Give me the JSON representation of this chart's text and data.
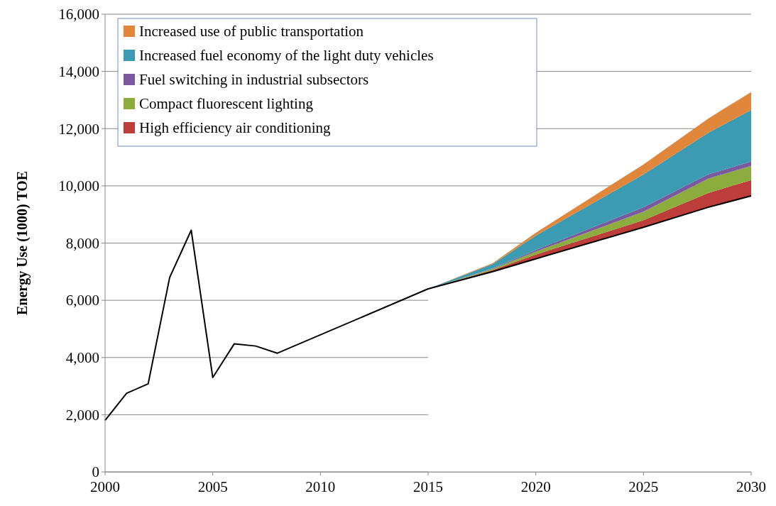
{
  "chart_data": {
    "type": "area",
    "ylabel": "Energy Use (1000) TOE",
    "stacked": true,
    "grid": "y",
    "legend": "top left",
    "xlim": [
      2000,
      2030
    ],
    "x": [
      2000,
      2001,
      2002,
      2003,
      2004,
      2005,
      2006,
      2007,
      2008,
      2015,
      2018,
      2020,
      2025,
      2028,
      2030
    ],
    "xticks": [
      2000,
      2005,
      2010,
      2015,
      2020,
      2025,
      2030
    ],
    "ylim": [
      0,
      16000
    ],
    "yticks": [
      {
        "value": 0,
        "label": "0"
      },
      {
        "value": 2000,
        "label": "2,000"
      },
      {
        "value": 4000,
        "label": "4,000"
      },
      {
        "value": 6000,
        "label": "6,000"
      },
      {
        "value": 8000,
        "label": "8,000"
      },
      {
        "value": 10000,
        "label": "10,000"
      },
      {
        "value": 12000,
        "label": "12,000"
      },
      {
        "value": 14000,
        "label": "14,000"
      },
      {
        "value": 16000,
        "label": "16,000"
      }
    ],
    "series": [
      {
        "type": "line",
        "color": "#000000",
        "values": [
          1800,
          2750,
          3080,
          6800,
          8450,
          3300,
          4480,
          4400,
          4150,
          6400,
          7000,
          7450,
          8550,
          9250,
          9650
        ]
      },
      {
        "color": "#ffffff",
        "x": [
          2015,
          2018,
          2020,
          2025,
          2028,
          2030
        ],
        "values": [
          6400,
          7000,
          7450,
          8550,
          9250,
          9650
        ]
      },
      {
        "name": "High efficiency  air conditioning",
        "color": "#bd3d3a",
        "x": [
          2015,
          2018,
          2020,
          2025,
          2028,
          2030
        ],
        "values": [
          0,
          60,
          150,
          250,
          500,
          550
        ]
      },
      {
        "name": "Compact fluorescent lighting",
        "color": "#8cac3e",
        "x": [
          2015,
          2018,
          2020,
          2025,
          2028,
          2030
        ],
        "values": [
          0,
          40,
          100,
          300,
          500,
          500
        ]
      },
      {
        "name": "Fuel switching in industrial subsectors",
        "color": "#7a5a9e",
        "x": [
          2015,
          2018,
          2020,
          2025,
          2028,
          2030
        ],
        "values": [
          0,
          20,
          60,
          150,
          150,
          150
        ]
      },
      {
        "name": "Increased fuel economy of the light duty vehicles",
        "color": "#3a9bb3",
        "x": [
          2015,
          2018,
          2020,
          2025,
          2028,
          2030
        ],
        "values": [
          0,
          150,
          500,
          1150,
          1450,
          1800
        ]
      },
      {
        "name": "Increased use of public transportation",
        "color": "#e0873b",
        "x": [
          2015,
          2018,
          2020,
          2025,
          2028,
          2030
        ],
        "values": [
          0,
          30,
          100,
          350,
          500,
          630
        ]
      }
    ]
  }
}
